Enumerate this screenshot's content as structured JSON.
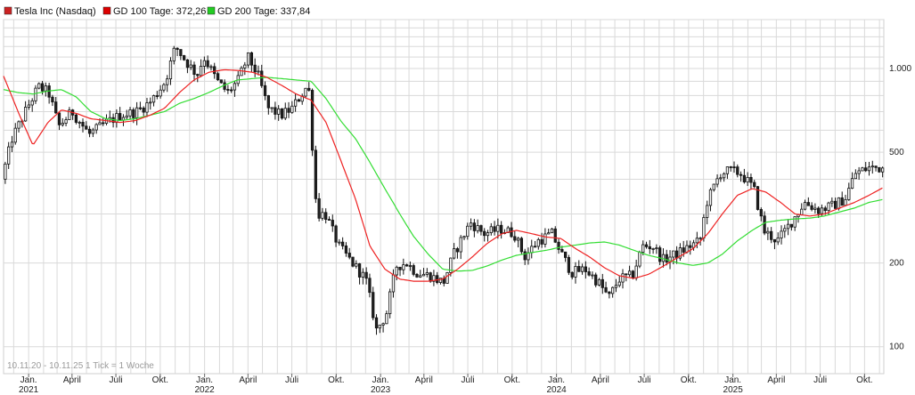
{
  "chart_data": {
    "type": "candlestick",
    "title": "",
    "scale": "log",
    "ylim": [
      80,
      1500
    ],
    "y_ticks": [
      {
        "value": 100,
        "label": "100"
      },
      {
        "value": 200,
        "label": "200"
      },
      {
        "value": 500,
        "label": "500"
      },
      {
        "value": 1000,
        "label": "1.000"
      }
    ],
    "x_range": [
      "2020-11-10",
      "2025-11-10"
    ],
    "x_ticks": [
      {
        "date": "2021-01-01",
        "label": "Jan.",
        "year": "2021"
      },
      {
        "date": "2021-04-01",
        "label": "April"
      },
      {
        "date": "2021-07-01",
        "label": "Juli"
      },
      {
        "date": "2021-10-01",
        "label": "Okt."
      },
      {
        "date": "2022-01-01",
        "label": "Jan.",
        "year": "2022"
      },
      {
        "date": "2022-04-01",
        "label": "April"
      },
      {
        "date": "2022-07-01",
        "label": "Juli"
      },
      {
        "date": "2022-10-01",
        "label": "Okt."
      },
      {
        "date": "2023-01-01",
        "label": "Jan.",
        "year": "2023"
      },
      {
        "date": "2023-04-01",
        "label": "April"
      },
      {
        "date": "2023-07-01",
        "label": "Juli"
      },
      {
        "date": "2023-10-01",
        "label": "Okt."
      },
      {
        "date": "2024-01-01",
        "label": "Jan.",
        "year": "2024"
      },
      {
        "date": "2024-04-01",
        "label": "April"
      },
      {
        "date": "2024-07-01",
        "label": "Juli"
      },
      {
        "date": "2024-10-01",
        "label": "Okt."
      },
      {
        "date": "2025-01-01",
        "label": "Jan.",
        "year": "2025"
      },
      {
        "date": "2025-04-01",
        "label": "April"
      },
      {
        "date": "2025-07-01",
        "label": "Juli"
      },
      {
        "date": "2025-10-01",
        "label": "Okt."
      }
    ],
    "grid": true,
    "legend_position": "top-left",
    "legend": [
      {
        "label": "Tesla Inc (Nasdaq)",
        "color": "#cc2222"
      },
      {
        "label": "GD 100 Tage: 372,26",
        "color": "#dd0000"
      },
      {
        "label": "GD 200 Tage: 337,84",
        "color": "#22cc22"
      }
    ],
    "note": "10.11.20 - 10.11.25   1 Tick = 1 Woche",
    "colors": {
      "up": "#ffffff",
      "down": "#222222",
      "outline": "#111111",
      "gd100": "#ee2222",
      "gd200": "#33dd33",
      "grid": "#d9d9d9"
    },
    "price_series": [
      [
        "2020-11-10",
        400
      ],
      [
        "2020-12-01",
        560
      ],
      [
        "2021-01-01",
        720
      ],
      [
        "2021-01-25",
        860
      ],
      [
        "2021-02-15",
        820
      ],
      [
        "2021-03-08",
        620
      ],
      [
        "2021-04-05",
        700
      ],
      [
        "2021-05-10",
        580
      ],
      [
        "2021-06-15",
        640
      ],
      [
        "2021-07-15",
        680
      ],
      [
        "2021-08-16",
        700
      ],
      [
        "2021-09-15",
        760
      ],
      [
        "2021-10-15",
        900
      ],
      [
        "2021-11-05",
        1200
      ],
      [
        "2021-11-29",
        1050
      ],
      [
        "2021-12-20",
        950
      ],
      [
        "2022-01-03",
        1100
      ],
      [
        "2022-01-31",
        900
      ],
      [
        "2022-02-21",
        820
      ],
      [
        "2022-03-14",
        900
      ],
      [
        "2022-04-04",
        1100
      ],
      [
        "2022-04-25",
        950
      ],
      [
        "2022-05-16",
        720
      ],
      [
        "2022-06-13",
        680
      ],
      [
        "2022-07-05",
        720
      ],
      [
        "2022-08-08",
        880
      ],
      [
        "2022-08-25",
        300
      ],
      [
        "2022-09-12",
        300
      ],
      [
        "2022-10-10",
        230
      ],
      [
        "2022-11-07",
        200
      ],
      [
        "2022-12-05",
        175
      ],
      [
        "2022-12-27",
        115
      ],
      [
        "2023-01-16",
        130
      ],
      [
        "2023-02-06",
        195
      ],
      [
        "2023-02-27",
        200
      ],
      [
        "2023-03-20",
        185
      ],
      [
        "2023-04-17",
        180
      ],
      [
        "2023-05-15",
        170
      ],
      [
        "2023-06-05",
        215
      ],
      [
        "2023-07-10",
        280
      ],
      [
        "2023-08-07",
        255
      ],
      [
        "2023-09-11",
        265
      ],
      [
        "2023-10-09",
        255
      ],
      [
        "2023-10-30",
        210
      ],
      [
        "2023-11-27",
        240
      ],
      [
        "2023-12-26",
        255
      ],
      [
        "2024-01-15",
        215
      ],
      [
        "2024-02-05",
        185
      ],
      [
        "2024-03-04",
        190
      ],
      [
        "2024-04-01",
        170
      ],
      [
        "2024-04-22",
        150
      ],
      [
        "2024-05-13",
        175
      ],
      [
        "2024-06-10",
        180
      ],
      [
        "2024-07-01",
        230
      ],
      [
        "2024-07-22",
        230
      ],
      [
        "2024-08-12",
        205
      ],
      [
        "2024-09-09",
        215
      ],
      [
        "2024-10-07",
        230
      ],
      [
        "2024-10-28",
        240
      ],
      [
        "2024-11-11",
        330
      ],
      [
        "2024-12-09",
        420
      ],
      [
        "2024-12-30",
        430
      ],
      [
        "2025-01-20",
        420
      ],
      [
        "2025-02-17",
        370
      ],
      [
        "2025-03-10",
        260
      ],
      [
        "2025-04-07",
        240
      ],
      [
        "2025-05-05",
        280
      ],
      [
        "2025-06-02",
        330
      ],
      [
        "2025-07-01",
        310
      ],
      [
        "2025-07-28",
        320
      ],
      [
        "2025-08-25",
        340
      ],
      [
        "2025-09-15",
        420
      ],
      [
        "2025-10-13",
        440
      ],
      [
        "2025-11-07",
        440
      ]
    ],
    "gd100_series": [
      [
        "2020-11-10",
        940
      ],
      [
        "2020-12-10",
        700
      ],
      [
        "2021-01-10",
        530
      ],
      [
        "2021-02-10",
        640
      ],
      [
        "2021-03-10",
        710
      ],
      [
        "2021-04-10",
        690
      ],
      [
        "2021-05-10",
        660
      ],
      [
        "2021-06-10",
        650
      ],
      [
        "2021-07-10",
        640
      ],
      [
        "2021-08-10",
        650
      ],
      [
        "2021-09-10",
        680
      ],
      [
        "2021-10-10",
        720
      ],
      [
        "2021-11-10",
        820
      ],
      [
        "2021-12-10",
        910
      ],
      [
        "2022-01-10",
        970
      ],
      [
        "2022-02-10",
        990
      ],
      [
        "2022-03-10",
        985
      ],
      [
        "2022-04-10",
        970
      ],
      [
        "2022-05-10",
        930
      ],
      [
        "2022-06-10",
        870
      ],
      [
        "2022-07-10",
        810
      ],
      [
        "2022-08-10",
        770
      ],
      [
        "2022-09-10",
        640
      ],
      [
        "2022-10-10",
        470
      ],
      [
        "2022-11-10",
        340
      ],
      [
        "2022-12-10",
        230
      ],
      [
        "2023-01-10",
        190
      ],
      [
        "2023-02-10",
        175
      ],
      [
        "2023-03-10",
        172
      ],
      [
        "2023-04-10",
        172
      ],
      [
        "2023-05-10",
        175
      ],
      [
        "2023-06-10",
        190
      ],
      [
        "2023-07-10",
        210
      ],
      [
        "2023-08-10",
        235
      ],
      [
        "2023-09-10",
        255
      ],
      [
        "2023-10-10",
        262
      ],
      [
        "2023-11-10",
        255
      ],
      [
        "2023-12-10",
        248
      ],
      [
        "2024-01-10",
        245
      ],
      [
        "2024-02-10",
        225
      ],
      [
        "2024-03-10",
        210
      ],
      [
        "2024-04-10",
        192
      ],
      [
        "2024-05-10",
        180
      ],
      [
        "2024-06-10",
        176
      ],
      [
        "2024-07-10",
        182
      ],
      [
        "2024-08-10",
        195
      ],
      [
        "2024-09-10",
        210
      ],
      [
        "2024-10-10",
        225
      ],
      [
        "2024-11-10",
        255
      ],
      [
        "2024-12-10",
        300
      ],
      [
        "2025-01-10",
        350
      ],
      [
        "2025-02-10",
        370
      ],
      [
        "2025-03-10",
        360
      ],
      [
        "2025-04-10",
        330
      ],
      [
        "2025-05-10",
        300
      ],
      [
        "2025-06-10",
        295
      ],
      [
        "2025-07-10",
        300
      ],
      [
        "2025-08-10",
        315
      ],
      [
        "2025-09-10",
        330
      ],
      [
        "2025-10-10",
        350
      ],
      [
        "2025-11-07",
        372
      ]
    ],
    "gd200_series": [
      [
        "2020-11-10",
        840
      ],
      [
        "2020-12-10",
        820
      ],
      [
        "2021-01-10",
        810
      ],
      [
        "2021-02-10",
        830
      ],
      [
        "2021-03-10",
        840
      ],
      [
        "2021-04-10",
        790
      ],
      [
        "2021-05-10",
        700
      ],
      [
        "2021-06-10",
        660
      ],
      [
        "2021-07-10",
        650
      ],
      [
        "2021-08-10",
        660
      ],
      [
        "2021-09-10",
        680
      ],
      [
        "2021-10-10",
        700
      ],
      [
        "2021-11-10",
        750
      ],
      [
        "2021-12-10",
        780
      ],
      [
        "2022-01-10",
        820
      ],
      [
        "2022-02-10",
        870
      ],
      [
        "2022-03-10",
        910
      ],
      [
        "2022-04-10",
        920
      ],
      [
        "2022-05-10",
        930
      ],
      [
        "2022-06-10",
        920
      ],
      [
        "2022-07-10",
        910
      ],
      [
        "2022-08-10",
        900
      ],
      [
        "2022-09-10",
        780
      ],
      [
        "2022-10-10",
        650
      ],
      [
        "2022-11-10",
        560
      ],
      [
        "2022-12-10",
        460
      ],
      [
        "2023-01-10",
        370
      ],
      [
        "2023-02-10",
        300
      ],
      [
        "2023-03-10",
        250
      ],
      [
        "2023-04-10",
        215
      ],
      [
        "2023-05-10",
        190
      ],
      [
        "2023-06-10",
        187
      ],
      [
        "2023-07-10",
        188
      ],
      [
        "2023-08-10",
        195
      ],
      [
        "2023-09-10",
        205
      ],
      [
        "2023-10-10",
        213
      ],
      [
        "2023-11-10",
        218
      ],
      [
        "2023-12-10",
        222
      ],
      [
        "2024-01-10",
        228
      ],
      [
        "2024-02-10",
        232
      ],
      [
        "2024-03-10",
        236
      ],
      [
        "2024-04-10",
        238
      ],
      [
        "2024-05-10",
        232
      ],
      [
        "2024-06-10",
        222
      ],
      [
        "2024-07-10",
        213
      ],
      [
        "2024-08-10",
        207
      ],
      [
        "2024-09-10",
        200
      ],
      [
        "2024-10-10",
        196
      ],
      [
        "2024-11-10",
        200
      ],
      [
        "2024-12-10",
        215
      ],
      [
        "2025-01-10",
        240
      ],
      [
        "2025-02-10",
        262
      ],
      [
        "2025-03-10",
        280
      ],
      [
        "2025-04-10",
        285
      ],
      [
        "2025-05-10",
        288
      ],
      [
        "2025-06-10",
        290
      ],
      [
        "2025-07-10",
        295
      ],
      [
        "2025-08-10",
        305
      ],
      [
        "2025-09-10",
        315
      ],
      [
        "2025-10-10",
        330
      ],
      [
        "2025-11-07",
        338
      ]
    ]
  }
}
